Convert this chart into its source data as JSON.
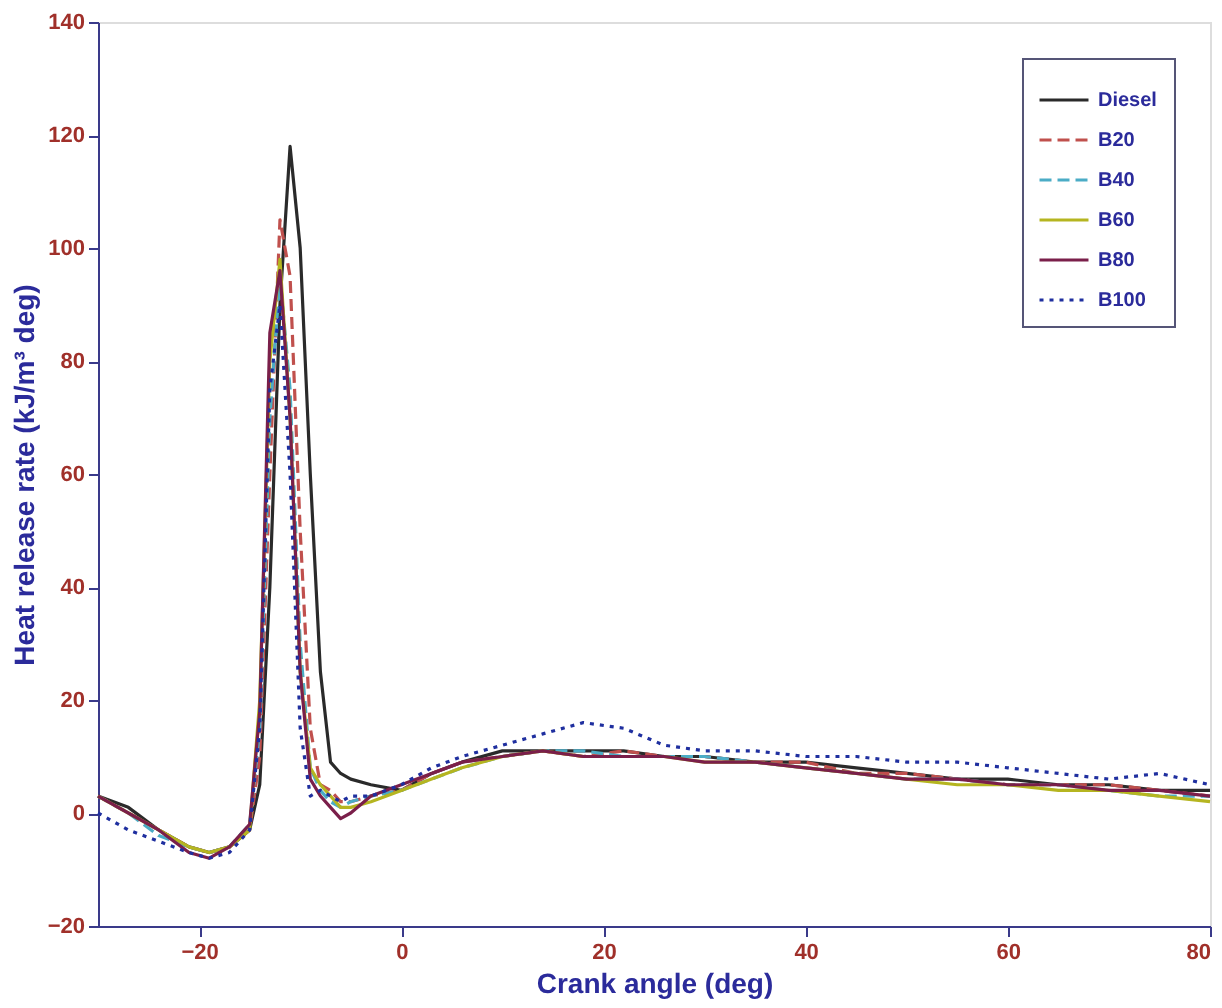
{
  "chart_data": {
    "type": "line",
    "xlabel": "Crank angle (deg)",
    "ylabel": "Heat release rate (kJ/m³ deg)",
    "x": [
      -30,
      -27,
      -24,
      -21,
      -19,
      -17,
      -15,
      -14,
      -13,
      -12,
      -11,
      -10,
      -9,
      -8,
      -7,
      -6,
      -5,
      -3,
      0,
      3,
      6,
      10,
      14,
      18,
      22,
      26,
      30,
      35,
      40,
      45,
      50,
      55,
      60,
      65,
      70,
      75,
      80
    ],
    "series": [
      {
        "name": "Diesel",
        "color": "#2a2a2a",
        "line_style": "solid",
        "values": [
          3,
          1,
          -3,
          -6,
          -7,
          -6,
          -3,
          5,
          40,
          90,
          118,
          100,
          60,
          25,
          9,
          7,
          6,
          5,
          4,
          7,
          9,
          11,
          11,
          11,
          11,
          10,
          10,
          9,
          9,
          8,
          7,
          6,
          6,
          5,
          5,
          4,
          4
        ]
      },
      {
        "name": "B20",
        "color": "#c0504d",
        "line_style": "dashed",
        "values": [
          3,
          0,
          -3,
          -6,
          -7,
          -6,
          -3,
          10,
          60,
          105,
          95,
          50,
          15,
          5,
          4,
          2,
          2,
          3,
          4,
          7,
          9,
          10,
          11,
          10,
          11,
          10,
          10,
          9,
          9,
          7,
          7,
          6,
          5,
          5,
          5,
          4,
          3
        ]
      },
      {
        "name": "B40",
        "color": "#4bacc6",
        "line_style": "dashed",
        "values": [
          3,
          0,
          -4,
          -6,
          -7,
          -6,
          -2,
          15,
          70,
          95,
          75,
          30,
          8,
          4,
          2,
          1,
          2,
          3,
          4,
          6,
          8,
          10,
          11,
          11,
          10,
          10,
          10,
          9,
          8,
          7,
          6,
          6,
          5,
          5,
          4,
          3,
          3
        ]
      },
      {
        "name": "B60",
        "color": "#b5b520",
        "line_style": "solid",
        "values": [
          3,
          0,
          -3,
          -6,
          -7,
          -6,
          -3,
          20,
          80,
          98,
          70,
          25,
          8,
          5,
          3,
          1,
          1,
          2,
          4,
          6,
          8,
          10,
          11,
          10,
          10,
          10,
          9,
          9,
          8,
          7,
          6,
          5,
          5,
          4,
          4,
          3,
          2
        ]
      },
      {
        "name": "B80",
        "color": "#7a1f4a",
        "line_style": "solid",
        "values": [
          3,
          0,
          -3,
          -7,
          -8,
          -6,
          -2,
          18,
          85,
          96,
          70,
          25,
          6,
          3,
          1,
          -1,
          0,
          3,
          5,
          7,
          9,
          10,
          11,
          10,
          10,
          10,
          9,
          9,
          8,
          7,
          6,
          6,
          5,
          5,
          4,
          4,
          3
        ]
      },
      {
        "name": "B100",
        "color": "#1f2f9f",
        "line_style": "dotted",
        "values": [
          0,
          -3,
          -5,
          -7,
          -8,
          -7,
          -3,
          15,
          75,
          90,
          60,
          15,
          3,
          4,
          3,
          2,
          3,
          3,
          5,
          8,
          10,
          12,
          14,
          16,
          15,
          12,
          11,
          11,
          10,
          10,
          9,
          9,
          8,
          7,
          6,
          7,
          5
        ]
      }
    ],
    "xlim": [
      -30,
      80
    ],
    "xticks": [
      -20,
      0,
      20,
      40,
      60,
      80
    ],
    "ylim": [
      -20,
      140
    ],
    "yticks": [
      -20,
      0,
      20,
      40,
      60,
      80,
      100,
      120,
      140
    ],
    "grid": false,
    "legend": "top right",
    "marker": "none"
  }
}
